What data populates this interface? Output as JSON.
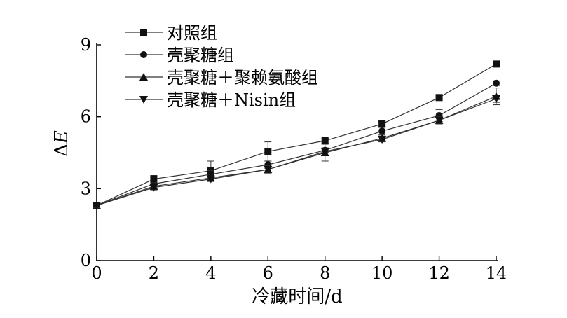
{
  "chart_data": {
    "type": "line",
    "title": "",
    "xlabel": "冷藏时间/d",
    "ylabel_base": "Δ",
    "ylabel_italic": "E",
    "x": [
      0,
      2,
      4,
      6,
      8,
      10,
      12,
      14
    ],
    "xlim": [
      0,
      14
    ],
    "ylim": [
      0,
      9
    ],
    "xticks": [
      0,
      2,
      4,
      6,
      8,
      10,
      12,
      14
    ],
    "yticks": [
      0,
      3,
      6,
      9
    ],
    "grid": false,
    "legend_position": "top-left",
    "series": [
      {
        "name": "对照组",
        "marker": "square",
        "values": [
          2.3,
          3.4,
          3.75,
          4.55,
          5.0,
          5.7,
          6.8,
          8.2
        ],
        "errors": [
          0.1,
          0.15,
          0.4,
          0.4,
          0.1,
          0.1,
          0.1,
          0.1
        ]
      },
      {
        "name": "壳聚糖组",
        "marker": "circle",
        "values": [
          2.3,
          3.2,
          3.6,
          4.0,
          4.6,
          5.4,
          6.05,
          7.4
        ],
        "errors": [
          0.1,
          0.1,
          0.15,
          0.15,
          0.1,
          0.15,
          0.25,
          0.1
        ]
      },
      {
        "name": "壳聚糖＋聚赖氨酸组",
        "marker": "triangle-up",
        "values": [
          2.3,
          3.1,
          3.45,
          3.8,
          4.5,
          5.1,
          5.85,
          6.85
        ],
        "errors": [
          0.1,
          0.15,
          0.15,
          0.15,
          0.35,
          0.1,
          0.15,
          0.35
        ]
      },
      {
        "name": "壳聚糖＋Nisin组",
        "marker": "triangle-down",
        "values": [
          2.3,
          3.05,
          3.4,
          3.8,
          4.55,
          5.05,
          5.85,
          6.75
        ],
        "errors": [
          0.1,
          0.1,
          0.1,
          0.15,
          0.15,
          0.1,
          0.15,
          0.15
        ]
      }
    ]
  }
}
